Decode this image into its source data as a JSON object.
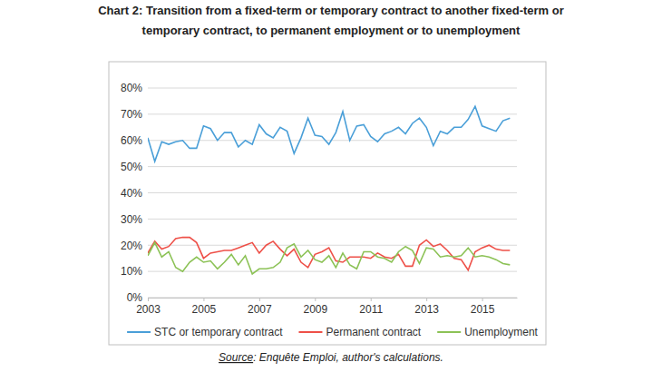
{
  "chart_data": {
    "type": "line",
    "title": [
      "Chart 2: Transition from a fixed-term or temporary contract to another fixed-term or",
      "temporary contract, to permanent employment or to unemployment"
    ],
    "note": "Source: Enquête Emploi, author's calculations.",
    "x": [
      2003,
      2003.25,
      2003.5,
      2003.75,
      2004,
      2004.25,
      2004.5,
      2004.75,
      2005,
      2005.25,
      2005.5,
      2005.75,
      2006,
      2006.25,
      2006.5,
      2006.75,
      2007,
      2007.25,
      2007.5,
      2007.75,
      2008,
      2008.25,
      2008.5,
      2008.75,
      2009,
      2009.25,
      2009.5,
      2009.75,
      2010,
      2010.25,
      2010.5,
      2010.75,
      2011,
      2011.25,
      2011.5,
      2011.75,
      2012,
      2012.25,
      2012.5,
      2012.75,
      2013,
      2013.25,
      2013.5,
      2013.75,
      2014,
      2014.25,
      2014.5,
      2014.75,
      2015,
      2015.25,
      2015.5,
      2015.75,
      2016
    ],
    "series": [
      {
        "name": "STC or temporary contract",
        "color": "#4a9fd8",
        "values": [
          61,
          52,
          59.5,
          58.5,
          59.5,
          60,
          57,
          57,
          65.5,
          64.5,
          60,
          63,
          63,
          57.5,
          60,
          58.5,
          66,
          62.5,
          61,
          65,
          63.5,
          55,
          61,
          68.5,
          62,
          61.5,
          58.5,
          63,
          71,
          60,
          65.5,
          66,
          61.5,
          59.5,
          62.5,
          63.5,
          65,
          62.5,
          66.5,
          68.5,
          65,
          58,
          63.5,
          62.5,
          65,
          65,
          68,
          73,
          65.5,
          64.5,
          63.5,
          67.5,
          68.5
        ]
      },
      {
        "name": "Permanent contract",
        "color": "#ee5048",
        "values": [
          17,
          21.5,
          18.5,
          19.5,
          22.5,
          23,
          23,
          21,
          15,
          17,
          17.5,
          18,
          18,
          19,
          20,
          21,
          17,
          20,
          21.5,
          18.5,
          16,
          18.5,
          13.5,
          11.5,
          16.5,
          17.5,
          19,
          14,
          13.5,
          15.5,
          15.5,
          15.5,
          15,
          17,
          15.5,
          15,
          16.5,
          12,
          12,
          20,
          22,
          19.5,
          20.5,
          18,
          15,
          14.5,
          10.5,
          17.5,
          19,
          20,
          18.5,
          18,
          18
        ]
      },
      {
        "name": "Unemployment",
        "color": "#8cc256",
        "values": [
          16,
          21,
          15.5,
          17.5,
          11.5,
          10,
          13.5,
          15.5,
          13.5,
          14,
          11,
          13.5,
          16.5,
          12.5,
          16,
          9,
          11,
          11,
          11.5,
          13.5,
          19,
          20.5,
          15.5,
          18,
          14.5,
          13.5,
          16,
          11.5,
          17,
          12.5,
          11,
          17.5,
          17.5,
          15.5,
          15,
          13.5,
          17.5,
          19.5,
          18,
          13,
          19,
          18.5,
          15.5,
          16,
          15.5,
          16,
          19,
          15.5,
          16,
          15.5,
          14.5,
          13,
          12.5
        ]
      }
    ],
    "xlim": [
      2003,
      2016.25
    ],
    "xticks": [
      2003,
      2005,
      2007,
      2009,
      2011,
      2013,
      2015
    ],
    "ylim": [
      0,
      80
    ],
    "yticks": [
      {
        "value": 0,
        "label": "0%"
      },
      {
        "value": 10,
        "label": "10%"
      },
      {
        "value": 20,
        "label": "20%"
      },
      {
        "value": 30,
        "label": "30%"
      },
      {
        "value": 40,
        "label": "40%"
      },
      {
        "value": 50,
        "label": "50%"
      },
      {
        "value": 60,
        "label": "60%"
      },
      {
        "value": 70,
        "label": "70%"
      },
      {
        "value": 80,
        "label": "80%"
      }
    ],
    "grid": true,
    "legend": "bottom"
  }
}
